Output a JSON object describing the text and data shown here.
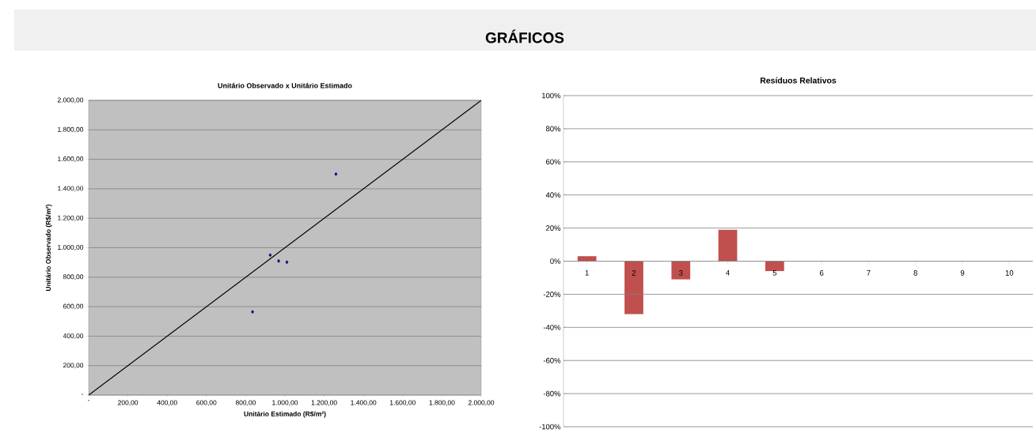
{
  "chart_data": [
    {
      "type": "scatter",
      "title": "Unitário Observado x Unitário Estimado",
      "xlabel": "Unitário Estimado (R$/m²)",
      "ylabel": "Unitário Observado (R$/m²)",
      "annotations": [
        "GRÁFICOS"
      ],
      "xlim": [
        0,
        2000
      ],
      "ylim": [
        0,
        2000
      ],
      "grid": "y",
      "marker": "diamond",
      "xticks": [
        {
          "value": 0,
          "label": "-"
        },
        {
          "value": 200,
          "label": "200,00"
        },
        {
          "value": 400,
          "label": "400,00"
        },
        {
          "value": 600,
          "label": "600,00"
        },
        {
          "value": 800,
          "label": "800,00"
        },
        {
          "value": 1000,
          "label": "1.000,00"
        },
        {
          "value": 1200,
          "label": "1.200,00"
        },
        {
          "value": 1400,
          "label": "1.400,00"
        },
        {
          "value": 1600,
          "label": "1.600,00"
        },
        {
          "value": 1800,
          "label": "1.800,00"
        },
        {
          "value": 2000,
          "label": "2.000,00"
        }
      ],
      "yticks": [
        {
          "value": 0,
          "label": "-"
        },
        {
          "value": 200,
          "label": "200,00"
        },
        {
          "value": 400,
          "label": "400,00"
        },
        {
          "value": 600,
          "label": "600,00"
        },
        {
          "value": 800,
          "label": "800,00"
        },
        {
          "value": 1000,
          "label": "1.000,00"
        },
        {
          "value": 1200,
          "label": "1.200,00"
        },
        {
          "value": 1400,
          "label": "1.400,00"
        },
        {
          "value": 1600,
          "label": "1.600,00"
        },
        {
          "value": 1800,
          "label": "1.800,00"
        },
        {
          "value": 2000,
          "label": "2.000,00"
        }
      ],
      "series": [
        {
          "type": "scatter",
          "color": "#000080",
          "x": [
            835,
            925,
            968,
            1010,
            1260
          ],
          "values": [
            565,
            950,
            910,
            902,
            1500
          ]
        },
        {
          "type": "line",
          "color": "#000000",
          "marker": "none",
          "x": [
            0,
            2000
          ],
          "values": [
            0,
            2000
          ]
        }
      ]
    },
    {
      "type": "bar",
      "title": "Resíduos Relativos",
      "categories": [
        "1",
        "2",
        "3",
        "4",
        "5",
        "6",
        "7",
        "8",
        "9",
        "10"
      ],
      "color": "#c0504d",
      "values": [
        3,
        -32,
        -11,
        19,
        -6,
        null,
        null,
        null,
        null,
        null
      ],
      "ylim": [
        -100,
        100
      ],
      "grid": "y",
      "yticks": [
        {
          "value": -100,
          "label": "-100%"
        },
        {
          "value": -80,
          "label": "-80%"
        },
        {
          "value": -60,
          "label": "-60%"
        },
        {
          "value": -40,
          "label": "-40%"
        },
        {
          "value": -20,
          "label": "-20%"
        },
        {
          "value": 0,
          "label": "0%"
        },
        {
          "value": 20,
          "label": "20%"
        },
        {
          "value": 40,
          "label": "40%"
        },
        {
          "value": 60,
          "label": "60%"
        },
        {
          "value": 80,
          "label": "80%"
        },
        {
          "value": 100,
          "label": "100%"
        }
      ]
    }
  ]
}
